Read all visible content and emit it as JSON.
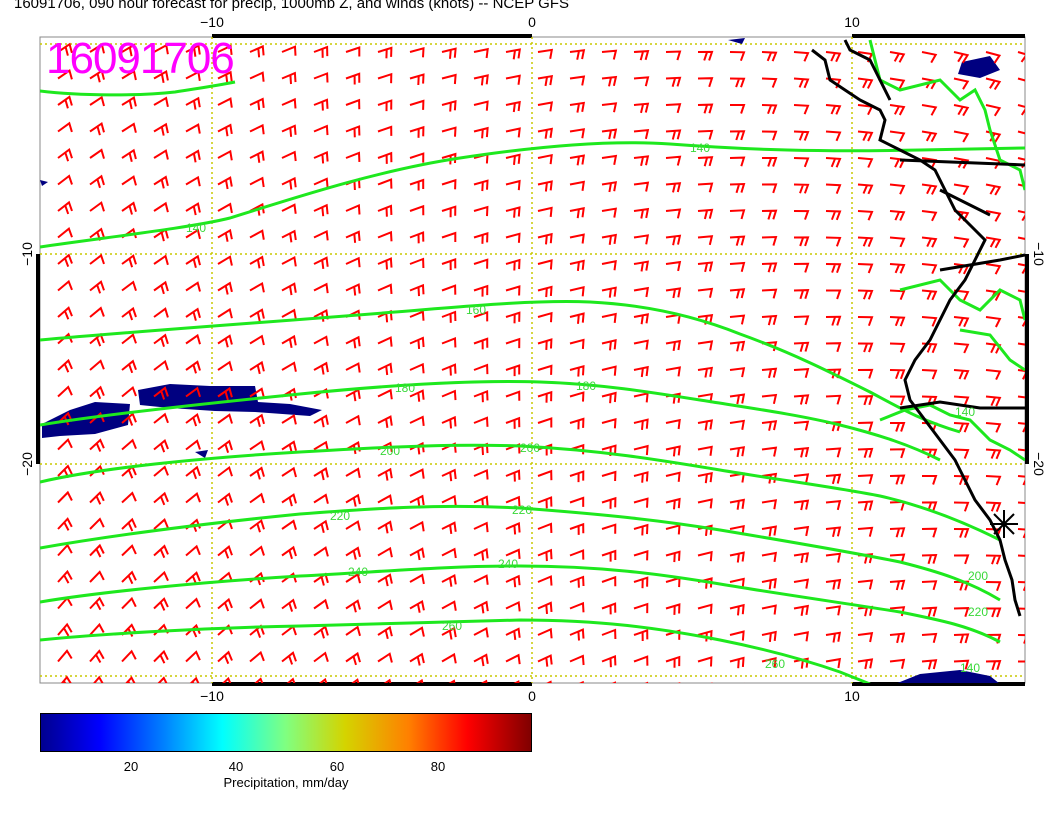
{
  "title": "16091706, 090 hour forecast for precip, 1000mb Z, and winds (knots) -- NCEP GFS",
  "stamp": "16091706",
  "axes": {
    "x_top": [
      "−10",
      "0",
      "10"
    ],
    "x_bottom": [
      "−10",
      "0",
      "10"
    ],
    "y_left": [
      "−10",
      "−20"
    ],
    "y_right": [
      "−10",
      "−20"
    ]
  },
  "contour_labels": [
    "140",
    "140",
    "160",
    "180",
    "180",
    "200",
    "200",
    "220",
    "220",
    "240",
    "240",
    "260",
    "260",
    "200",
    "220",
    "140",
    "140"
  ],
  "colorbar": {
    "ticks": [
      "20",
      "40",
      "60",
      "80"
    ],
    "label": "Precipitation, mm/day"
  },
  "colors": {
    "wind_barbs": "#ff0000",
    "contours": "#1ee81e",
    "grid": "#c8c800",
    "precip": "#000080",
    "stamp": "#ff00ff"
  }
}
